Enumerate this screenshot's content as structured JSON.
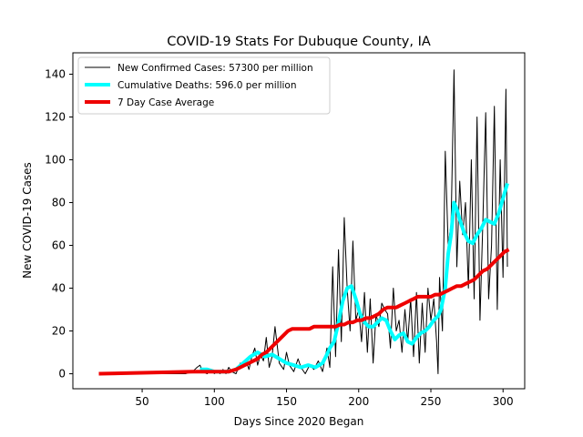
{
  "chart_data": {
    "type": "line",
    "title": "COVID-19 Stats For Dubuque County, IA",
    "xlabel": "Days Since 2020 Began",
    "ylabel": "New COVID-19 Cases",
    "xlim": [
      2,
      315
    ],
    "ylim": [
      -7,
      150
    ],
    "x_ticks": [
      50,
      100,
      150,
      200,
      250,
      300
    ],
    "y_ticks": [
      0,
      20,
      40,
      60,
      80,
      100,
      120,
      140
    ],
    "grid": false,
    "legend_position": "top-left",
    "series": [
      {
        "name": "New Confirmed Cases: 57300 per million",
        "color": "#000000",
        "line_width": 1,
        "x": [
          20,
          80,
          85,
          88,
          90,
          92,
          95,
          98,
          100,
          102,
          104,
          106,
          108,
          110,
          112,
          115,
          118,
          120,
          122,
          124,
          126,
          128,
          130,
          132,
          134,
          136,
          138,
          140,
          142,
          145,
          148,
          150,
          152,
          155,
          158,
          160,
          163,
          166,
          169,
          172,
          175,
          178,
          180,
          182,
          184,
          186,
          188,
          190,
          192,
          194,
          196,
          198,
          200,
          202,
          204,
          206,
          208,
          210,
          212,
          214,
          216,
          218,
          220,
          222,
          224,
          226,
          228,
          230,
          232,
          234,
          236,
          238,
          240,
          242,
          244,
          246,
          248,
          250,
          252,
          254,
          255,
          256,
          258,
          260,
          262,
          264,
          266,
          268,
          270,
          272,
          274,
          276,
          278,
          280,
          282,
          284,
          286,
          288,
          290,
          292,
          294,
          296,
          298,
          300,
          302,
          303
        ],
        "y": [
          0,
          0,
          1,
          3,
          4,
          1,
          0,
          2,
          0,
          1,
          0,
          2,
          0,
          3,
          1,
          0,
          5,
          3,
          6,
          2,
          8,
          12,
          4,
          9,
          6,
          17,
          3,
          8,
          22,
          5,
          2,
          10,
          4,
          1,
          7,
          3,
          0,
          4,
          2,
          6,
          1,
          12,
          3,
          50,
          8,
          58,
          15,
          73,
          40,
          20,
          62,
          25,
          30,
          15,
          38,
          10,
          35,
          5,
          28,
          22,
          33,
          30,
          28,
          12,
          40,
          20,
          25,
          10,
          30,
          15,
          35,
          8,
          38,
          5,
          33,
          10,
          40,
          25,
          35,
          15,
          0,
          45,
          20,
          104,
          60,
          70,
          142,
          50,
          90,
          65,
          80,
          40,
          100,
          35,
          120,
          25,
          70,
          122,
          35,
          60,
          125,
          30,
          100,
          45,
          133,
          50
        ]
      },
      {
        "name": "Cumulative Deaths: 596.0 per million",
        "color": "#00ffff",
        "line_width": 4,
        "x": [
          90,
          95,
          100,
          105,
          110,
          115,
          120,
          125,
          130,
          135,
          140,
          145,
          150,
          155,
          160,
          165,
          170,
          175,
          178,
          180,
          183,
          186,
          189,
          192,
          195,
          198,
          201,
          204,
          207,
          210,
          213,
          216,
          219,
          222,
          225,
          228,
          231,
          234,
          237,
          240,
          243,
          246,
          249,
          252,
          255,
          257,
          260,
          262,
          264,
          266,
          268,
          270,
          273,
          276,
          279,
          282,
          285,
          288,
          291,
          294,
          297,
          300,
          303
        ],
        "y": [
          2,
          2,
          1,
          1,
          1,
          2,
          5,
          8,
          10,
          8,
          9,
          7,
          5,
          4,
          3,
          4,
          3,
          5,
          9,
          12,
          15,
          24,
          34,
          40,
          41,
          35,
          28,
          24,
          22,
          22,
          24,
          26,
          25,
          20,
          16,
          18,
          19,
          15,
          14,
          17,
          19,
          20,
          22,
          25,
          27,
          30,
          40,
          56,
          65,
          80,
          77,
          72,
          66,
          62,
          61,
          65,
          68,
          72,
          71,
          70,
          75,
          82,
          89
        ]
      },
      {
        "name": "7 Day Case Average",
        "color": "#ee0000",
        "line_width": 4,
        "x": [
          20,
          85,
          110,
          115,
          118,
          121,
          124,
          127,
          130,
          133,
          136,
          139,
          142,
          145,
          148,
          151,
          154,
          157,
          160,
          163,
          166,
          169,
          172,
          175,
          178,
          181,
          184,
          187,
          190,
          193,
          196,
          199,
          202,
          205,
          208,
          211,
          214,
          217,
          220,
          223,
          226,
          229,
          232,
          235,
          238,
          241,
          244,
          247,
          250,
          253,
          256,
          259,
          262,
          265,
          268,
          271,
          274,
          277,
          280,
          283,
          286,
          289,
          292,
          295,
          298,
          301,
          304
        ],
        "y": [
          0,
          1,
          1,
          2,
          3,
          4,
          5,
          6,
          7,
          9,
          10,
          12,
          14,
          16,
          18,
          20,
          21,
          21,
          21,
          21,
          21,
          22,
          22,
          22,
          22,
          22,
          22,
          23,
          23,
          24,
          24,
          25,
          25,
          26,
          26,
          27,
          28,
          30,
          31,
          31,
          31,
          32,
          33,
          34,
          35,
          36,
          36,
          36,
          36,
          37,
          37,
          38,
          39,
          40,
          41,
          41,
          42,
          43,
          44,
          46,
          48,
          49,
          51,
          53,
          55,
          57,
          58
        ]
      }
    ]
  }
}
